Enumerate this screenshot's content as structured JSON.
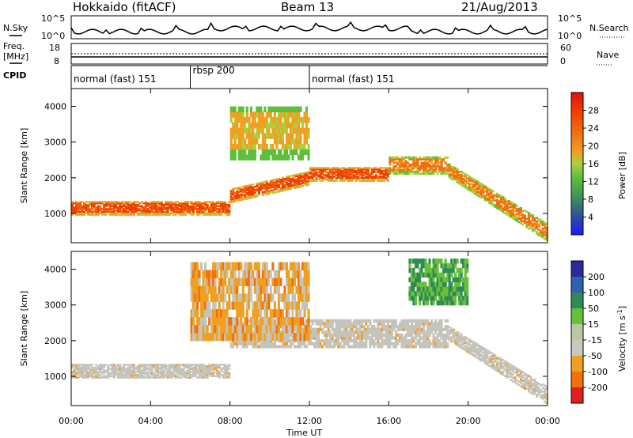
{
  "header": {
    "station": "Hokkaido (fitACF)",
    "beam": "Beam 13",
    "date": "21/Aug/2013"
  },
  "aux_panel": {
    "nsky_label": "N.Sky",
    "nsearch_label": "N.Search",
    "noise_ticks": [
      "10^5",
      "10^0"
    ],
    "freq_label": "Freq.",
    "freq_unit": "[MHz]",
    "freq_ticks": [
      "18",
      "8"
    ],
    "nave_label": "Nave",
    "nave_ticks": [
      "60",
      "0"
    ],
    "cpid_label": "CPID"
  },
  "cpid_segments": [
    {
      "label": "normal (fast) 151",
      "start_hour": 0,
      "end_hour": 6
    },
    {
      "label": "rbsp 200",
      "start_hour": 6,
      "end_hour": 12
    },
    {
      "label": "normal (fast) 151",
      "start_hour": 12,
      "end_hour": 24
    }
  ],
  "axes": {
    "x_label": "Time UT",
    "x_ticks": [
      "00:00",
      "04:00",
      "08:00",
      "12:00",
      "16:00",
      "20:00",
      "00:00"
    ],
    "x_tick_hours": [
      0,
      4,
      8,
      12,
      16,
      20,
      24
    ],
    "y_label": "Slant Range [km]",
    "y_ticks": [
      "1000",
      "2000",
      "3000",
      "4000"
    ],
    "y_tick_values": [
      1000,
      2000,
      3000,
      4000
    ],
    "y_range_km": [
      180,
      4500
    ],
    "x_range_hours": [
      0,
      24
    ]
  },
  "power_colorbar": {
    "label": "Power [dB]",
    "ticks": [
      "4",
      "8",
      "12",
      "16",
      "20",
      "24",
      "28"
    ],
    "colors": [
      "#1a1aff",
      "#2f4f9a",
      "#3f8f5a",
      "#5dbf3a",
      "#a8d040",
      "#f0a020",
      "#f07010",
      "#f04000",
      "#e01010"
    ]
  },
  "velocity_colorbar": {
    "label": "Velocity [m s",
    "label_sup": "-1",
    "label_end": "]",
    "ticks": [
      "200",
      "100",
      "50",
      "15",
      "-15",
      "-50",
      "-100",
      "-200"
    ],
    "colors": [
      "#2a2a9a",
      "#3060b0",
      "#2e8b57",
      "#6abf3a",
      "#b8c8a0",
      "#c8c8c0",
      "#f0a020",
      "#f07010",
      "#e02020"
    ]
  },
  "chart_data": [
    {
      "type": "heatmap",
      "name": "power",
      "title": "Hokkaido (fitACF) Beam 13 21/Aug/2013",
      "xlabel": "Time UT",
      "ylabel": "Slant Range [km]",
      "xlim_hours": [
        0,
        24
      ],
      "ylim_km": [
        180,
        4500
      ],
      "colorbar": "Power [dB]",
      "features": [
        {
          "desc": "strong band",
          "hours": [
            0,
            8
          ],
          "range_km": [
            950,
            1350
          ],
          "value_db": 28
        },
        {
          "desc": "rising band",
          "hours": [
            8,
            12
          ],
          "range_km_start": [
            1300,
            1700
          ],
          "range_km_end": [
            1800,
            2200
          ],
          "value_db": 26
        },
        {
          "desc": "band",
          "hours": [
            12,
            16
          ],
          "range_km": [
            1900,
            2300
          ],
          "value_db": 26
        },
        {
          "desc": "band",
          "hours": [
            16,
            19
          ],
          "range_km": [
            2100,
            2600
          ],
          "value_db": 24
        },
        {
          "desc": "descending band",
          "hours": [
            19,
            24
          ],
          "range_km_start": [
            2000,
            2400
          ],
          "range_km_end": [
            200,
            700
          ],
          "value_db": 22
        },
        {
          "desc": "upper patches",
          "hours": [
            8,
            12
          ],
          "range_km": [
            2500,
            4000
          ],
          "value_db": 18
        }
      ]
    },
    {
      "type": "heatmap",
      "name": "velocity",
      "xlabel": "Time UT",
      "ylabel": "Slant Range [km]",
      "xlim_hours": [
        0,
        24
      ],
      "ylim_km": [
        180,
        4500
      ],
      "colorbar": "Velocity [m s-1]",
      "features": [
        {
          "desc": "ground scatter",
          "hours": [
            0,
            8
          ],
          "range_km": [
            950,
            1350
          ],
          "value_ms": 0
        },
        {
          "desc": "ground scatter",
          "hours": [
            8,
            19
          ],
          "range_km": [
            1800,
            2600
          ],
          "value_ms": 0
        },
        {
          "desc": "ground scatter",
          "hours": [
            19,
            24
          ],
          "range_km_start": [
            2000,
            2400
          ],
          "range_km_end": [
            200,
            700
          ],
          "value_ms": 0
        },
        {
          "desc": "ionospheric scatter",
          "hours": [
            6,
            12
          ],
          "range_km": [
            2000,
            4200
          ],
          "value_ms": -60
        },
        {
          "desc": "ionospheric scatter",
          "hours": [
            17,
            20
          ],
          "range_km": [
            3000,
            4300
          ],
          "value_ms": 30
        }
      ]
    }
  ]
}
